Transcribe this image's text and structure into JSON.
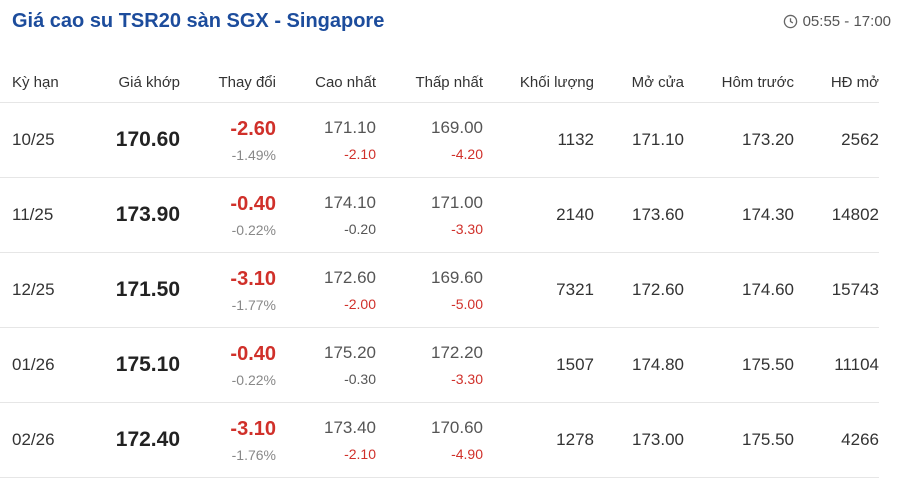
{
  "header": {
    "title": "Giá cao su TSR20 sàn SGX - Singapore",
    "time": "05:55 - 17:00"
  },
  "table": {
    "columns": [
      "Kỳ hạn",
      "Giá khớp",
      "Thay đổi",
      "Cao nhất",
      "Thấp nhất",
      "Khối lượng",
      "Mở cửa",
      "Hôm trước",
      "HĐ mở"
    ],
    "rows": [
      {
        "term": "10/25",
        "price": "170.60",
        "change": "-2.60",
        "change_pct": "-1.49%",
        "high": "171.10",
        "high_diff": "-2.10",
        "low": "169.00",
        "low_diff": "-4.20",
        "volume": "1132",
        "open": "171.10",
        "prev": "173.20",
        "oi": "2562"
      },
      {
        "term": "11/25",
        "price": "173.90",
        "change": "-0.40",
        "change_pct": "-0.22%",
        "high": "174.10",
        "high_diff": "-0.20",
        "low": "171.00",
        "low_diff": "-3.30",
        "volume": "2140",
        "open": "173.60",
        "prev": "174.30",
        "oi": "14802"
      },
      {
        "term": "12/25",
        "price": "171.50",
        "change": "-3.10",
        "change_pct": "-1.77%",
        "high": "172.60",
        "high_diff": "-2.00",
        "low": "169.60",
        "low_diff": "-5.00",
        "volume": "7321",
        "open": "172.60",
        "prev": "174.60",
        "oi": "15743"
      },
      {
        "term": "01/26",
        "price": "175.10",
        "change": "-0.40",
        "change_pct": "-0.22%",
        "high": "175.20",
        "high_diff": "-0.30",
        "low": "172.20",
        "low_diff": "-3.30",
        "volume": "1507",
        "open": "174.80",
        "prev": "175.50",
        "oi": "11104"
      },
      {
        "term": "02/26",
        "price": "172.40",
        "change": "-3.10",
        "change_pct": "-1.76%",
        "high": "173.40",
        "high_diff": "-2.10",
        "low": "170.60",
        "low_diff": "-4.90",
        "volume": "1278",
        "open": "173.00",
        "prev": "175.50",
        "oi": "4266"
      }
    ]
  }
}
